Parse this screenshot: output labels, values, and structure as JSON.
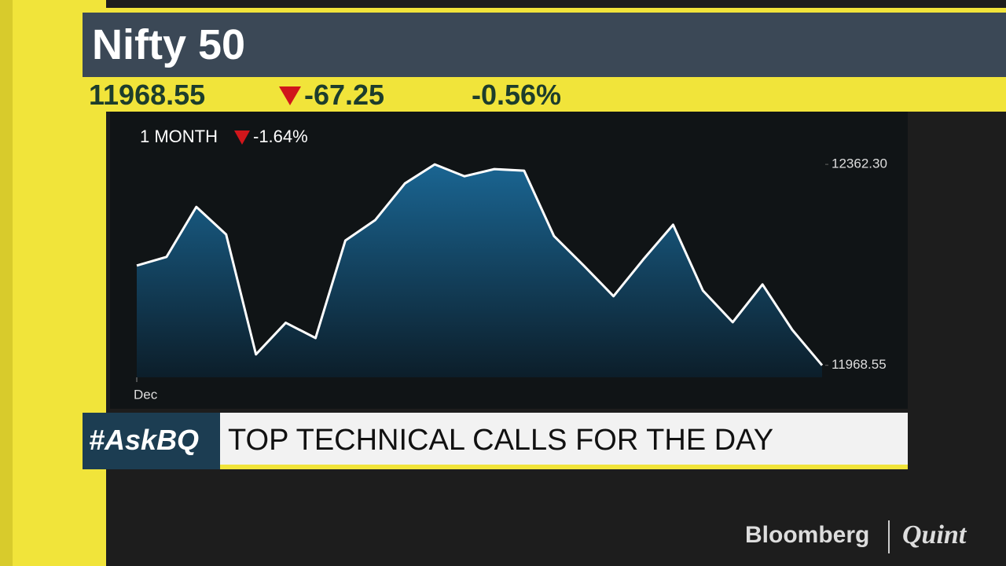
{
  "header": {
    "title": "Nifty 50",
    "price": "11968.55",
    "change": "-67.25",
    "change_pct": "-0.56%"
  },
  "chart_data": {
    "type": "area",
    "subtitle": "1 MONTH",
    "period_change": "-1.64%",
    "categories": [
      "Dec",
      null,
      null,
      null,
      null,
      null,
      null,
      null,
      null,
      null,
      null,
      null,
      null,
      null,
      null,
      null,
      null,
      null,
      null,
      null,
      null,
      null,
      null,
      null
    ],
    "values": [
      12164,
      12181,
      12279,
      12225,
      11990,
      12052,
      12022,
      12213,
      12253,
      12325,
      12362.3,
      12339,
      12353,
      12350,
      12222,
      12164,
      12104,
      12176,
      12244,
      12115,
      12053,
      12127,
      12038,
      11968.55
    ],
    "color": "#ffffff",
    "ylim": [
      11945,
      12384
    ],
    "yticks": [
      {
        "value": 12362.3,
        "label": "12362.30"
      },
      {
        "value": 11968.55,
        "label": "11968.55"
      }
    ]
  },
  "banner": {
    "tag": "#AskBQ",
    "headline": "TOP TECHNICAL CALLS FOR THE DAY"
  },
  "logo": {
    "left": "Bloomberg",
    "right": "Quint"
  }
}
